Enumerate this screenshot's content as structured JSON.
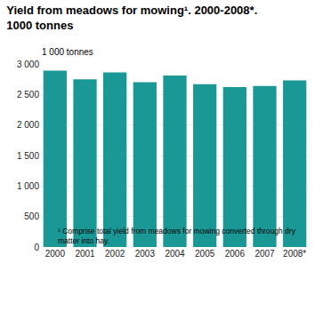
{
  "chart_data": {
    "type": "bar",
    "title": "Yield from meadows for mowing¹. 2000-2008*.",
    "subtitle": "1000 tonnes",
    "ylabel": "1 000 tonnes",
    "footnote": "¹ Comprise total yield from meadows for mowing converted through dry\nmatter into hay.",
    "categories": [
      "2000",
      "2001",
      "2002",
      "2003",
      "2004",
      "2005",
      "2006",
      "2007",
      "2008*"
    ],
    "values": [
      2890,
      2750,
      2860,
      2700,
      2810,
      2670,
      2620,
      2640,
      2730
    ],
    "color": "#1a9896",
    "ylim": [
      0,
      3000
    ],
    "yticks": [
      0,
      500,
      {
        "value": 1000,
        "label": "1 000"
      },
      {
        "value": 1500,
        "label": "1 500"
      },
      {
        "value": 2000,
        "label": "2 000"
      },
      {
        "value": 2500,
        "label": "2 500"
      },
      {
        "value": 3000,
        "label": "3 000"
      }
    ],
    "grid": true
  }
}
